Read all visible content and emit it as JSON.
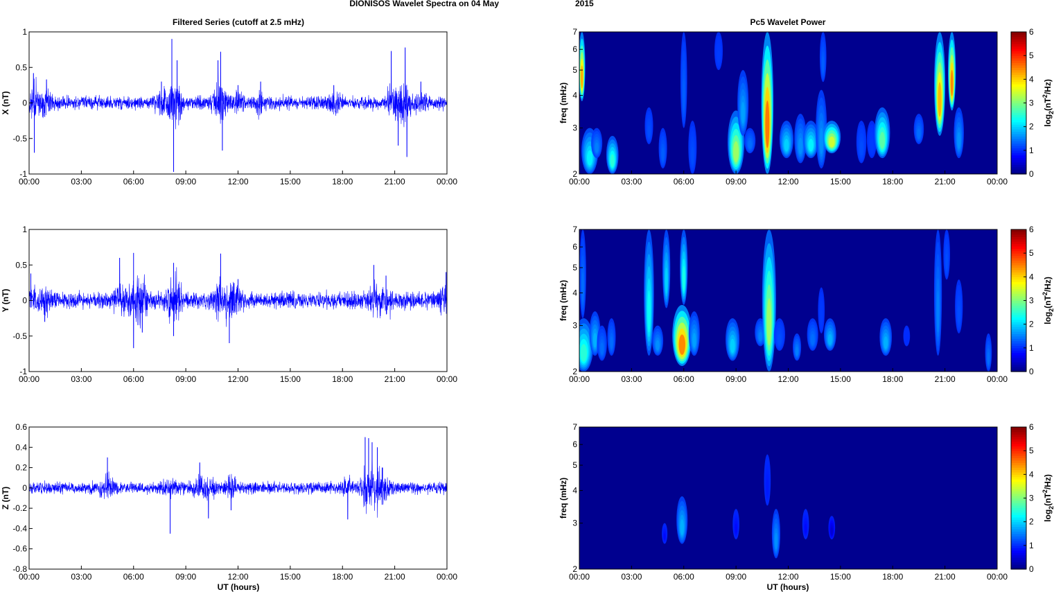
{
  "figure": {
    "main_title": "DIONISOS Wavelet Spectra on 04 May",
    "main_title_year": "2015",
    "left_column_title": "Filtered Series (cutoff at 2.5 mHz)",
    "right_column_title": "Pc5 Wavelet Power",
    "time_axis_label": "UT (hours)"
  },
  "colors": {
    "trace": "#0000ff",
    "spectrogram_background": "#00008f",
    "colormap": "jet"
  },
  "time_ticks": [
    "00:00",
    "03:00",
    "06:00",
    "09:00",
    "12:00",
    "15:00",
    "18:00",
    "21:00",
    "00:00"
  ],
  "chart_data": [
    {
      "type": "line",
      "panel": "X",
      "ylabel": "X (nT)",
      "xlim": [
        0,
        24
      ],
      "ylim": [
        -1,
        1
      ],
      "yticks": [
        "1",
        "0.5",
        "0",
        "-0.5",
        "-1"
      ],
      "ytick_values": [
        1,
        0.5,
        0,
        -0.5,
        -1
      ],
      "noise_amplitude": 0.07,
      "events": [
        {
          "x": 0.25,
          "y": 0.42
        },
        {
          "x": 0.3,
          "y": -0.7
        },
        {
          "x": 1.0,
          "y": 0.33
        },
        {
          "x": 8.2,
          "y": 0.9
        },
        {
          "x": 8.3,
          "y": -0.97
        },
        {
          "x": 8.5,
          "y": 0.6
        },
        {
          "x": 7.6,
          "y": 0.3
        },
        {
          "x": 11.0,
          "y": 0.72
        },
        {
          "x": 11.1,
          "y": -0.67
        },
        {
          "x": 10.85,
          "y": 0.6
        },
        {
          "x": 12.0,
          "y": 0.25
        },
        {
          "x": 13.3,
          "y": 0.3
        },
        {
          "x": 17.5,
          "y": 0.25
        },
        {
          "x": 20.8,
          "y": 0.73
        },
        {
          "x": 21.6,
          "y": 0.78
        },
        {
          "x": 21.7,
          "y": -0.76
        },
        {
          "x": 21.2,
          "y": -0.6
        },
        {
          "x": 22.5,
          "y": 0.3
        }
      ]
    },
    {
      "type": "line",
      "panel": "Y",
      "ylabel": "Y (nT)",
      "xlim": [
        0,
        24
      ],
      "ylim": [
        -1,
        1
      ],
      "yticks": [
        "1",
        "0.5",
        "0",
        "-0.5",
        "-1"
      ],
      "ytick_values": [
        1,
        0.5,
        0,
        -0.5,
        -1
      ],
      "noise_amplitude": 0.09,
      "events": [
        {
          "x": 0.1,
          "y": 0.38
        },
        {
          "x": 0.9,
          "y": -0.3
        },
        {
          "x": 5.2,
          "y": 0.6
        },
        {
          "x": 6.0,
          "y": 0.67
        },
        {
          "x": 6.0,
          "y": -0.67
        },
        {
          "x": 6.5,
          "y": -0.45
        },
        {
          "x": 8.3,
          "y": 0.53
        },
        {
          "x": 8.3,
          "y": -0.5
        },
        {
          "x": 11.0,
          "y": 0.66
        },
        {
          "x": 11.5,
          "y": -0.6
        },
        {
          "x": 12.0,
          "y": 0.3
        },
        {
          "x": 19.8,
          "y": 0.5
        },
        {
          "x": 20.5,
          "y": 0.35
        },
        {
          "x": 23.95,
          "y": 0.4
        }
      ]
    },
    {
      "type": "line",
      "panel": "Z",
      "ylabel": "Z (nT)",
      "xlim": [
        0,
        24
      ],
      "ylim": [
        -0.8,
        0.6
      ],
      "yticks": [
        "0.6",
        "0.4",
        "0.2",
        "0",
        "-0.2",
        "-0.4",
        "-0.6",
        "-0.8"
      ],
      "ytick_values": [
        0.6,
        0.4,
        0.2,
        0,
        -0.2,
        -0.4,
        -0.6,
        -0.8
      ],
      "noise_amplitude": 0.045,
      "events": [
        {
          "x": 4.5,
          "y": 0.3
        },
        {
          "x": 8.1,
          "y": -0.45
        },
        {
          "x": 9.8,
          "y": 0.25
        },
        {
          "x": 10.3,
          "y": -0.3
        },
        {
          "x": 11.6,
          "y": -0.22
        },
        {
          "x": 18.3,
          "y": -0.31
        },
        {
          "x": 19.3,
          "y": 0.5
        },
        {
          "x": 19.5,
          "y": 0.49
        },
        {
          "x": 19.7,
          "y": 0.45
        },
        {
          "x": 20.0,
          "y": 0.4
        },
        {
          "x": 20.3,
          "y": 0.2
        },
        {
          "x": 20.0,
          "y": -0.15
        }
      ]
    },
    {
      "type": "heatmap",
      "panel": "X",
      "ylabel": "freq (mHz)",
      "xlim": [
        0,
        24
      ],
      "ylim": [
        2,
        7
      ],
      "yscale": "log",
      "yticks": [
        "7",
        "6",
        "5",
        "4",
        "3",
        "2"
      ],
      "ytick_values": [
        7,
        6,
        5,
        4,
        3,
        2
      ],
      "colorbar_label": "log2(nT2/Hz)",
      "colorbar_ticks": [
        "6",
        "5",
        "4",
        "3",
        "2",
        "1",
        "0"
      ],
      "colorbar_tick_values": [
        6,
        5,
        4,
        3,
        2,
        1,
        0
      ],
      "clim": [
        0,
        6
      ],
      "blobs": [
        {
          "t": 0.15,
          "f1": 3.8,
          "f2": 7.0,
          "power": 4.3,
          "hw": 0.12
        },
        {
          "t": 0.6,
          "f1": 2.0,
          "f2": 3.0,
          "power": 2.2,
          "hw": 0.3
        },
        {
          "t": 1.0,
          "f1": 2.3,
          "f2": 3.0,
          "power": 1.5,
          "hw": 0.2
        },
        {
          "t": 1.9,
          "f1": 2.0,
          "f2": 2.8,
          "power": 2.5,
          "hw": 0.22
        },
        {
          "t": 4.0,
          "f1": 2.6,
          "f2": 3.6,
          "power": 1.2,
          "hw": 0.15
        },
        {
          "t": 4.8,
          "f1": 2.1,
          "f2": 3.0,
          "power": 1.3,
          "hw": 0.15
        },
        {
          "t": 6.0,
          "f1": 3.0,
          "f2": 7.0,
          "power": 1.3,
          "hw": 0.12
        },
        {
          "t": 6.5,
          "f1": 2.0,
          "f2": 3.2,
          "power": 1.2,
          "hw": 0.15
        },
        {
          "t": 8.0,
          "f1": 5.0,
          "f2": 7.0,
          "power": 1.1,
          "hw": 0.15
        },
        {
          "t": 9.0,
          "f1": 2.0,
          "f2": 3.5,
          "power": 3.2,
          "hw": 0.3
        },
        {
          "t": 9.4,
          "f1": 2.8,
          "f2": 5.0,
          "power": 1.7,
          "hw": 0.2
        },
        {
          "t": 9.8,
          "f1": 2.4,
          "f2": 3.0,
          "power": 1.4,
          "hw": 0.2
        },
        {
          "t": 10.8,
          "f1": 2.0,
          "f2": 7.0,
          "power": 4.6,
          "hw": 0.22
        },
        {
          "t": 11.9,
          "f1": 2.3,
          "f2": 3.2,
          "power": 2.0,
          "hw": 0.25
        },
        {
          "t": 12.7,
          "f1": 2.2,
          "f2": 3.4,
          "power": 1.6,
          "hw": 0.22
        },
        {
          "t": 13.3,
          "f1": 2.3,
          "f2": 3.2,
          "power": 2.2,
          "hw": 0.28
        },
        {
          "t": 13.9,
          "f1": 2.1,
          "f2": 4.2,
          "power": 1.6,
          "hw": 0.2
        },
        {
          "t": 14.5,
          "f1": 2.4,
          "f2": 3.2,
          "power": 3.5,
          "hw": 0.32
        },
        {
          "t": 14.0,
          "f1": 4.5,
          "f2": 7.0,
          "power": 1.3,
          "hw": 0.12
        },
        {
          "t": 16.2,
          "f1": 2.2,
          "f2": 3.2,
          "power": 1.2,
          "hw": 0.18
        },
        {
          "t": 16.8,
          "f1": 2.3,
          "f2": 3.2,
          "power": 1.1,
          "hw": 0.18
        },
        {
          "t": 17.4,
          "f1": 2.3,
          "f2": 3.6,
          "power": 2.8,
          "hw": 0.28
        },
        {
          "t": 19.5,
          "f1": 2.6,
          "f2": 3.4,
          "power": 1.4,
          "hw": 0.18
        },
        {
          "t": 20.7,
          "f1": 2.8,
          "f2": 7.0,
          "power": 4.2,
          "hw": 0.2
        },
        {
          "t": 21.4,
          "f1": 3.5,
          "f2": 7.0,
          "power": 4.5,
          "hw": 0.14
        },
        {
          "t": 21.8,
          "f1": 2.3,
          "f2": 3.6,
          "power": 1.6,
          "hw": 0.18
        }
      ]
    },
    {
      "type": "heatmap",
      "panel": "Y",
      "ylabel": "freq (mHz)",
      "xlim": [
        0,
        24
      ],
      "ylim": [
        2,
        7
      ],
      "yscale": "log",
      "yticks": [
        "7",
        "6",
        "5",
        "4",
        "3",
        "2"
      ],
      "ytick_values": [
        7,
        6,
        5,
        4,
        3,
        2
      ],
      "colorbar_label": "log2(nT2/Hz)",
      "colorbar_ticks": [
        "6",
        "5",
        "4",
        "3",
        "2",
        "1",
        "0"
      ],
      "colorbar_tick_values": [
        6,
        5,
        4,
        3,
        2,
        1,
        0
      ],
      "clim": [
        0,
        6
      ],
      "blobs": [
        {
          "t": 0.25,
          "f1": 2.0,
          "f2": 3.2,
          "power": 2.5,
          "hw": 0.35
        },
        {
          "t": 0.2,
          "f1": 3.2,
          "f2": 7.0,
          "power": 1.4,
          "hw": 0.12
        },
        {
          "t": 0.9,
          "f1": 2.3,
          "f2": 3.4,
          "power": 1.8,
          "hw": 0.2
        },
        {
          "t": 1.3,
          "f1": 2.2,
          "f2": 3.0,
          "power": 1.4,
          "hw": 0.18
        },
        {
          "t": 1.85,
          "f1": 2.3,
          "f2": 3.2,
          "power": 1.4,
          "hw": 0.15
        },
        {
          "t": 4.0,
          "f1": 2.3,
          "f2": 7.0,
          "power": 2.3,
          "hw": 0.18
        },
        {
          "t": 4.5,
          "f1": 2.3,
          "f2": 3.0,
          "power": 1.6,
          "hw": 0.2
        },
        {
          "t": 5.0,
          "f1": 3.5,
          "f2": 7.0,
          "power": 2.0,
          "hw": 0.14
        },
        {
          "t": 5.9,
          "f1": 2.1,
          "f2": 3.6,
          "power": 4.5,
          "hw": 0.35
        },
        {
          "t": 6.0,
          "f1": 3.6,
          "f2": 7.0,
          "power": 2.4,
          "hw": 0.14
        },
        {
          "t": 6.6,
          "f1": 2.3,
          "f2": 3.4,
          "power": 1.7,
          "hw": 0.2
        },
        {
          "t": 8.8,
          "f1": 2.2,
          "f2": 3.2,
          "power": 2.0,
          "hw": 0.25
        },
        {
          "t": 10.4,
          "f1": 2.5,
          "f2": 3.2,
          "power": 1.5,
          "hw": 0.2
        },
        {
          "t": 10.9,
          "f1": 2.0,
          "f2": 7.0,
          "power": 3.2,
          "hw": 0.25
        },
        {
          "t": 11.5,
          "f1": 2.4,
          "f2": 3.2,
          "power": 1.2,
          "hw": 0.2
        },
        {
          "t": 12.5,
          "f1": 2.2,
          "f2": 2.8,
          "power": 1.5,
          "hw": 0.15
        },
        {
          "t": 13.4,
          "f1": 2.4,
          "f2": 3.2,
          "power": 1.4,
          "hw": 0.2
        },
        {
          "t": 13.9,
          "f1": 2.8,
          "f2": 4.2,
          "power": 1.1,
          "hw": 0.12
        },
        {
          "t": 14.4,
          "f1": 2.4,
          "f2": 3.2,
          "power": 1.8,
          "hw": 0.22
        },
        {
          "t": 17.6,
          "f1": 2.3,
          "f2": 3.2,
          "power": 1.8,
          "hw": 0.22
        },
        {
          "t": 18.8,
          "f1": 2.5,
          "f2": 3.0,
          "power": 1.0,
          "hw": 0.12
        },
        {
          "t": 20.6,
          "f1": 2.3,
          "f2": 7.0,
          "power": 1.5,
          "hw": 0.14
        },
        {
          "t": 21.1,
          "f1": 4.5,
          "f2": 7.0,
          "power": 1.2,
          "hw": 0.12
        },
        {
          "t": 21.8,
          "f1": 2.8,
          "f2": 4.5,
          "power": 1.2,
          "hw": 0.14
        },
        {
          "t": 23.5,
          "f1": 2.0,
          "f2": 2.8,
          "power": 1.4,
          "hw": 0.12
        }
      ]
    },
    {
      "type": "heatmap",
      "panel": "Z",
      "ylabel": "freq (mHz)",
      "xlim": [
        0,
        24
      ],
      "ylim": [
        2,
        7
      ],
      "yscale": "log",
      "yticks": [
        "7",
        "6",
        "5",
        "4",
        "3",
        "2"
      ],
      "ytick_values": [
        7,
        6,
        5,
        4,
        3,
        2
      ],
      "colorbar_label": "log2(nT2/Hz)",
      "colorbar_ticks": [
        "6",
        "5",
        "4",
        "3",
        "2",
        "1",
        "0"
      ],
      "colorbar_tick_values": [
        6,
        5,
        4,
        3,
        2,
        1,
        0
      ],
      "clim": [
        0,
        6
      ],
      "blobs": [
        {
          "t": 4.9,
          "f1": 2.5,
          "f2": 3.0,
          "power": 0.8,
          "hw": 0.1
        },
        {
          "t": 5.9,
          "f1": 2.5,
          "f2": 3.8,
          "power": 1.8,
          "hw": 0.2
        },
        {
          "t": 9.0,
          "f1": 2.6,
          "f2": 3.4,
          "power": 0.8,
          "hw": 0.12
        },
        {
          "t": 10.8,
          "f1": 3.5,
          "f2": 5.5,
          "power": 0.9,
          "hw": 0.12
        },
        {
          "t": 11.3,
          "f1": 2.2,
          "f2": 3.4,
          "power": 1.6,
          "hw": 0.15
        },
        {
          "t": 13.0,
          "f1": 2.6,
          "f2": 3.4,
          "power": 0.8,
          "hw": 0.12
        },
        {
          "t": 14.5,
          "f1": 2.6,
          "f2": 3.2,
          "power": 0.5,
          "hw": 0.12
        }
      ]
    }
  ]
}
